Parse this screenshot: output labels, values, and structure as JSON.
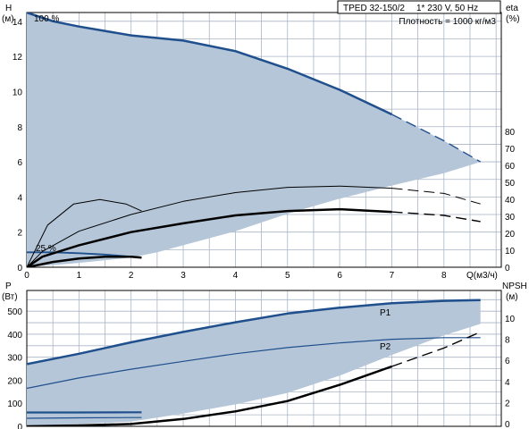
{
  "chart_data": [
    {
      "type": "line",
      "panel": "top",
      "info_box": {
        "model": "TPED 32-150/2",
        "supply": "1* 230 V, 50 Hz",
        "density": "Плотность = 1000 кг/м3"
      },
      "ylabel_left": [
        "H",
        "(м)"
      ],
      "ylabel_right": [
        "eta",
        "(%)"
      ],
      "xlabel": "Q(м3/ч)",
      "xlim": [
        0,
        9.1
      ],
      "ylim_left": [
        0,
        14.5
      ],
      "xticks": [
        "0",
        "1",
        "2",
        "3",
        "4",
        "5",
        "6",
        "7",
        "8"
      ],
      "yticks_left": [
        "0",
        "2",
        "4",
        "6",
        "8",
        "10",
        "12",
        "14"
      ],
      "yticks_right": [
        "0",
        "10",
        "20",
        "30",
        "40",
        "50",
        "60",
        "70",
        "80"
      ],
      "speed_labels": [
        "100 %",
        "25 %"
      ],
      "area": {
        "color": "#b5c6d9",
        "upper": [
          [
            0,
            14.5
          ],
          [
            1,
            13.7
          ],
          [
            2,
            13.2
          ],
          [
            3,
            12.9
          ],
          [
            4,
            12.3
          ],
          [
            5,
            11.3
          ],
          [
            6,
            10.1
          ],
          [
            7,
            8.7
          ],
          [
            8,
            7.2
          ],
          [
            8.7,
            6.0
          ]
        ],
        "lower": [
          [
            0,
            0
          ],
          [
            1,
            0.25
          ],
          [
            2,
            0.55
          ],
          [
            2.5,
            0.85
          ],
          [
            3,
            1.25
          ],
          [
            4,
            2.05
          ],
          [
            5,
            3.05
          ],
          [
            6,
            3.9
          ],
          [
            7,
            4.65
          ],
          [
            8,
            5.35
          ],
          [
            8.7,
            6.0
          ]
        ]
      },
      "series": [
        {
          "style": "head-100",
          "color": "#1f4f8c",
          "width": 2.5,
          "solid": [
            [
              0,
              14.5
            ],
            [
              0.5,
              14
            ],
            [
              1,
              13.7
            ],
            [
              2,
              13.2
            ],
            [
              3,
              12.9
            ],
            [
              4,
              12.3
            ],
            [
              5,
              11.3
            ],
            [
              6,
              10.1
            ],
            [
              7,
              8.7
            ]
          ],
          "dashed": [
            [
              7,
              8.7
            ],
            [
              8,
              7.2
            ],
            [
              8.7,
              6.0
            ]
          ]
        },
        {
          "style": "head-25",
          "color": "#1f4f8c",
          "width": 1.8,
          "solid": [
            [
              0,
              0.85
            ],
            [
              0.5,
              0.85
            ],
            [
              1,
              0.8
            ],
            [
              1.5,
              0.72
            ],
            [
              2,
              0.6
            ],
            [
              2.2,
              0.55
            ]
          ]
        },
        {
          "style": "eta-100",
          "color": "#000000",
          "width": 1,
          "solid": [
            [
              0,
              0
            ],
            [
              0.3,
              0.9
            ],
            [
              1,
              2.05
            ],
            [
              2,
              3
            ],
            [
              3,
              3.75
            ],
            [
              4,
              4.25
            ],
            [
              5,
              4.55
            ],
            [
              6,
              4.62
            ],
            [
              7,
              4.5
            ]
          ],
          "dashed": [
            [
              7,
              4.5
            ],
            [
              8,
              4.2
            ],
            [
              8.7,
              3.6
            ]
          ]
        },
        {
          "style": "eta-25",
          "color": "#000000",
          "width": 1,
          "solid": [
            [
              0,
              0
            ],
            [
              0.4,
              2.4
            ],
            [
              0.9,
              3.6
            ],
            [
              1.4,
              3.85
            ],
            [
              1.9,
              3.6
            ],
            [
              2.2,
              3.2
            ]
          ]
        },
        {
          "style": "p2h-100",
          "color": "#000000",
          "width": 2.5,
          "solid": [
            [
              0,
              0
            ],
            [
              0.3,
              0.6
            ],
            [
              1,
              1.25
            ],
            [
              2,
              2.0
            ],
            [
              3,
              2.5
            ],
            [
              4,
              2.95
            ],
            [
              5,
              3.2
            ],
            [
              6,
              3.3
            ],
            [
              7,
              3.15
            ]
          ],
          "dashed": [
            [
              7,
              3.15
            ],
            [
              8,
              2.95
            ],
            [
              8.7,
              2.6
            ]
          ]
        },
        {
          "style": "p2h-25",
          "color": "#000000",
          "width": 2.5,
          "solid": [
            [
              0,
              0
            ],
            [
              0.5,
              0.3
            ],
            [
              1,
              0.5
            ],
            [
              1.5,
              0.6
            ],
            [
              2,
              0.6
            ],
            [
              2.2,
              0.55
            ]
          ]
        }
      ]
    },
    {
      "type": "line",
      "panel": "bottom",
      "ylabel_left": [
        "P",
        "(Вт)"
      ],
      "ylabel_right": [
        "NPSH",
        "(м)"
      ],
      "xlim": [
        0,
        9.1
      ],
      "ylim_left": [
        0,
        590
      ],
      "yticks_left": [
        "0",
        "100",
        "200",
        "300",
        "400",
        "500"
      ],
      "yticks_right": [
        "0",
        "2",
        "4",
        "6",
        "8",
        "10"
      ],
      "area": {
        "color": "#b5c6d9",
        "upper": [
          [
            0,
            270
          ],
          [
            1,
            315
          ],
          [
            2,
            365
          ],
          [
            3,
            410
          ],
          [
            4,
            452
          ],
          [
            5,
            490
          ],
          [
            6,
            515
          ],
          [
            7,
            535
          ],
          [
            8,
            545
          ],
          [
            8.7,
            548
          ]
        ],
        "lower": [
          [
            0,
            0
          ],
          [
            2,
            20
          ],
          [
            3,
            55
          ],
          [
            4,
            95
          ],
          [
            5,
            145
          ],
          [
            6,
            220
          ],
          [
            7,
            310
          ],
          [
            8,
            395
          ],
          [
            8.7,
            445
          ]
        ]
      },
      "series": [
        {
          "name": "P1",
          "color": "#1f4f8c",
          "width": 2.5,
          "solid": [
            [
              0,
              270
            ],
            [
              1,
              315
            ],
            [
              2,
              365
            ],
            [
              3,
              410
            ],
            [
              4,
              452
            ],
            [
              5,
              490
            ],
            [
              6,
              515
            ],
            [
              7,
              535
            ],
            [
              8,
              545
            ],
            [
              8.7,
              548
            ]
          ]
        },
        {
          "name": "P2",
          "color": "#1f4f8c",
          "width": 1.2,
          "solid": [
            [
              0,
              165
            ],
            [
              1,
              210
            ],
            [
              2,
              248
            ],
            [
              3,
              282
            ],
            [
              4,
              315
            ],
            [
              5,
              342
            ],
            [
              6,
              362
            ],
            [
              7,
              378
            ],
            [
              8,
              385
            ],
            [
              8.7,
              385
            ]
          ]
        },
        {
          "style": "p1-25",
          "color": "#1f4f8c",
          "width": 2.2,
          "solid": [
            [
              0,
              60
            ],
            [
              1,
              60
            ],
            [
              2,
              61
            ],
            [
              2.2,
              61
            ]
          ]
        },
        {
          "style": "p2-25",
          "color": "#1f4f8c",
          "width": 1.2,
          "solid": [
            [
              0,
              35
            ],
            [
              1,
              37
            ],
            [
              2,
              38
            ],
            [
              2.2,
              38
            ]
          ]
        },
        {
          "style": "npsh",
          "color": "#000000",
          "width": 2.5,
          "solid": [
            [
              0,
              0
            ],
            [
              1,
              4
            ],
            [
              2,
              10
            ],
            [
              3,
              32
            ],
            [
              4,
              65
            ],
            [
              5,
              110
            ],
            [
              6,
              180
            ],
            [
              6.5,
              220
            ],
            [
              7,
              260
            ]
          ],
          "dashed": [
            [
              7,
              260
            ],
            [
              8,
              340
            ],
            [
              8.7,
              410
            ]
          ]
        }
      ]
    }
  ]
}
